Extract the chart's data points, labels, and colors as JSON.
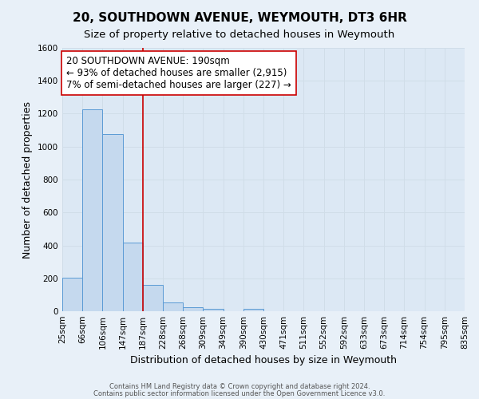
{
  "title": "20, SOUTHDOWN AVENUE, WEYMOUTH, DT3 6HR",
  "subtitle": "Size of property relative to detached houses in Weymouth",
  "xlabel": "Distribution of detached houses by size in Weymouth",
  "ylabel": "Number of detached properties",
  "footer_line1": "Contains HM Land Registry data © Crown copyright and database right 2024.",
  "footer_line2": "Contains public sector information licensed under the Open Government Licence v3.0.",
  "bin_labels": [
    "25sqm",
    "66sqm",
    "106sqm",
    "147sqm",
    "187sqm",
    "228sqm",
    "268sqm",
    "309sqm",
    "349sqm",
    "390sqm",
    "430sqm",
    "471sqm",
    "511sqm",
    "552sqm",
    "592sqm",
    "633sqm",
    "673sqm",
    "714sqm",
    "754sqm",
    "795sqm",
    "835sqm"
  ],
  "bar_heights": [
    205,
    1225,
    1075,
    415,
    160,
    55,
    25,
    15,
    0,
    15,
    0,
    0,
    0,
    0,
    0,
    0,
    0,
    0,
    0,
    0
  ],
  "bar_color": "#c5d9ee",
  "bar_edge_color": "#5b9bd5",
  "grid_color": "#d0dde8",
  "background_color": "#e8f0f8",
  "plot_bg_color": "#dce8f4",
  "ylim": [
    0,
    1600
  ],
  "yticks": [
    0,
    200,
    400,
    600,
    800,
    1000,
    1200,
    1400,
    1600
  ],
  "red_line_bin_index": 4,
  "annotation_line1": "20 SOUTHDOWN AVENUE: 190sqm",
  "annotation_line2": "← 93% of detached houses are smaller (2,915)",
  "annotation_line3": "7% of semi-detached houses are larger (227) →",
  "title_fontsize": 11,
  "subtitle_fontsize": 9.5,
  "axis_label_fontsize": 9,
  "tick_fontsize": 7.5,
  "annotation_fontsize": 8.5,
  "ylabel_fontsize": 9
}
